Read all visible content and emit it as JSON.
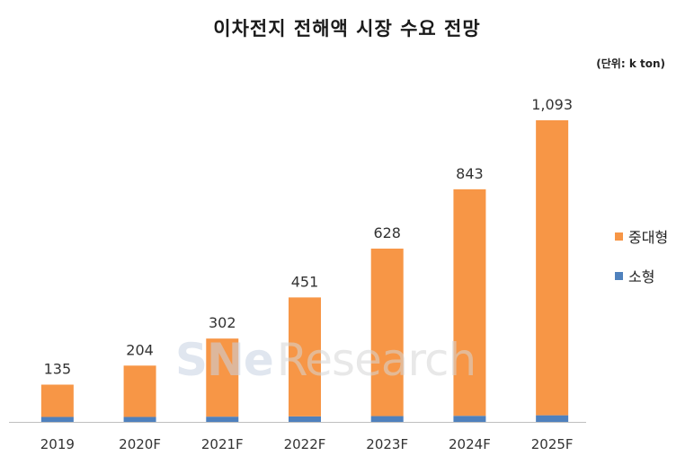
{
  "title": "이차전지 전해액 시장 수요 전망",
  "unit": "(단위: k ton)",
  "watermark": {
    "brand": "SNe",
    "text": "Research"
  },
  "colors": {
    "large": "#f79646",
    "small": "#4f81bd"
  },
  "chart_data": {
    "type": "bar",
    "stacked": true,
    "title": "이차전지 전해액 시장 수요 전망",
    "unit": "(단위: k ton)",
    "categories": [
      "2019",
      "2020F",
      "2021F",
      "2022F",
      "2023F",
      "2024F",
      "2025F"
    ],
    "series": [
      {
        "name": "소형",
        "color": "#4f81bd",
        "values": [
          18,
          18,
          19,
          20,
          21,
          22,
          24
        ]
      },
      {
        "name": "중대형",
        "color": "#f79646",
        "values": [
          117,
          186,
          283,
          431,
          607,
          821,
          1069
        ]
      }
    ],
    "totals": [
      135,
      204,
      302,
      451,
      628,
      843,
      1093
    ],
    "total_labels": [
      "135",
      "204",
      "302",
      "451",
      "628",
      "843",
      "1,093"
    ],
    "legend": {
      "position": "right",
      "items": [
        "중대형",
        "소형"
      ]
    },
    "ylim": [
      0,
      1093
    ],
    "grid": false
  }
}
